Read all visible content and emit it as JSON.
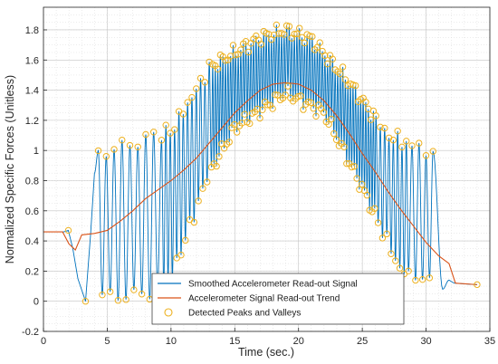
{
  "chart_data": {
    "type": "line",
    "title": "",
    "xlabel": "Time (sec.)",
    "ylabel": "Normalized Specific Forces (Unitless)",
    "xlim": [
      0,
      35
    ],
    "ylim": [
      -0.2,
      1.95
    ],
    "x_ticks": [
      0,
      5,
      10,
      15,
      20,
      25,
      30,
      35
    ],
    "y_ticks": [
      -0.2,
      0,
      0.2,
      0.4,
      0.6,
      0.8,
      1,
      1.2,
      1.4,
      1.6,
      1.8
    ],
    "x_tick_labels": [
      "0",
      "5",
      "10",
      "15",
      "20",
      "25",
      "30",
      "35"
    ],
    "y_tick_labels": [
      "-0.2",
      "0",
      "0.2",
      "0.4",
      "0.6",
      "0.8",
      "1",
      "1.2",
      "1.4",
      "1.6",
      "1.8"
    ],
    "grid": true,
    "minor_grid": true,
    "legend_position": "bottom-center",
    "series": [
      {
        "name": "Smoothed Accelerometer Read-out Signal",
        "color": "#0072BD",
        "style": "line",
        "description_points": {
          "baseline_start": [
            [
              0,
              0.46
            ],
            [
              2.0,
              0.46
            ]
          ],
          "first_swing": [
            [
              2.0,
              0.47
            ],
            [
              3.3,
              0.0
            ],
            [
              4.3,
              1.0
            ]
          ],
          "peak_envelope": [
            [
              4.3,
              0.98
            ],
            [
              10,
              1.13
            ],
            [
              13,
              1.55
            ],
            [
              17,
              1.75
            ],
            [
              19,
              1.8
            ],
            [
              21,
              1.74
            ],
            [
              24,
              1.45
            ],
            [
              27,
              1.1
            ],
            [
              30.5,
              1.0
            ]
          ],
          "valley_envelope": [
            [
              5,
              0.03
            ],
            [
              8,
              0.04
            ],
            [
              10,
              0.15
            ],
            [
              13,
              0.85
            ],
            [
              15,
              1.15
            ],
            [
              19,
              1.38
            ],
            [
              22,
              1.25
            ],
            [
              25,
              0.75
            ],
            [
              28,
              0.2
            ],
            [
              30.5,
              0.1
            ]
          ],
          "baseline_end": [
            [
              32,
              0.12
            ],
            [
              34,
              0.11
            ]
          ]
        }
      },
      {
        "name": "Accelerometer Signal Read-out Trend",
        "color": "#D95319",
        "style": "line",
        "x": [
          0,
          1.5,
          2.0,
          2.5,
          3.0,
          4.0,
          5.0,
          6.0,
          7.0,
          8.0,
          9.0,
          10.0,
          11.0,
          12.0,
          13.0,
          14.0,
          15.0,
          16.0,
          17.0,
          18.0,
          19.0,
          20.0,
          21.0,
          22.0,
          23.0,
          24.0,
          25.0,
          26.0,
          27.0,
          28.0,
          29.0,
          30.0,
          31.0,
          31.8,
          32.3,
          34.0
        ],
        "y": [
          0.46,
          0.46,
          0.38,
          0.34,
          0.44,
          0.45,
          0.47,
          0.53,
          0.6,
          0.68,
          0.74,
          0.8,
          0.87,
          0.95,
          1.05,
          1.15,
          1.25,
          1.33,
          1.4,
          1.44,
          1.45,
          1.44,
          1.4,
          1.33,
          1.23,
          1.11,
          0.98,
          0.86,
          0.73,
          0.61,
          0.5,
          0.39,
          0.3,
          0.25,
          0.12,
          0.11
        ]
      },
      {
        "name": "Detected Peaks and Valleys",
        "color": "#EDB120",
        "style": "markers-circle"
      }
    ]
  }
}
